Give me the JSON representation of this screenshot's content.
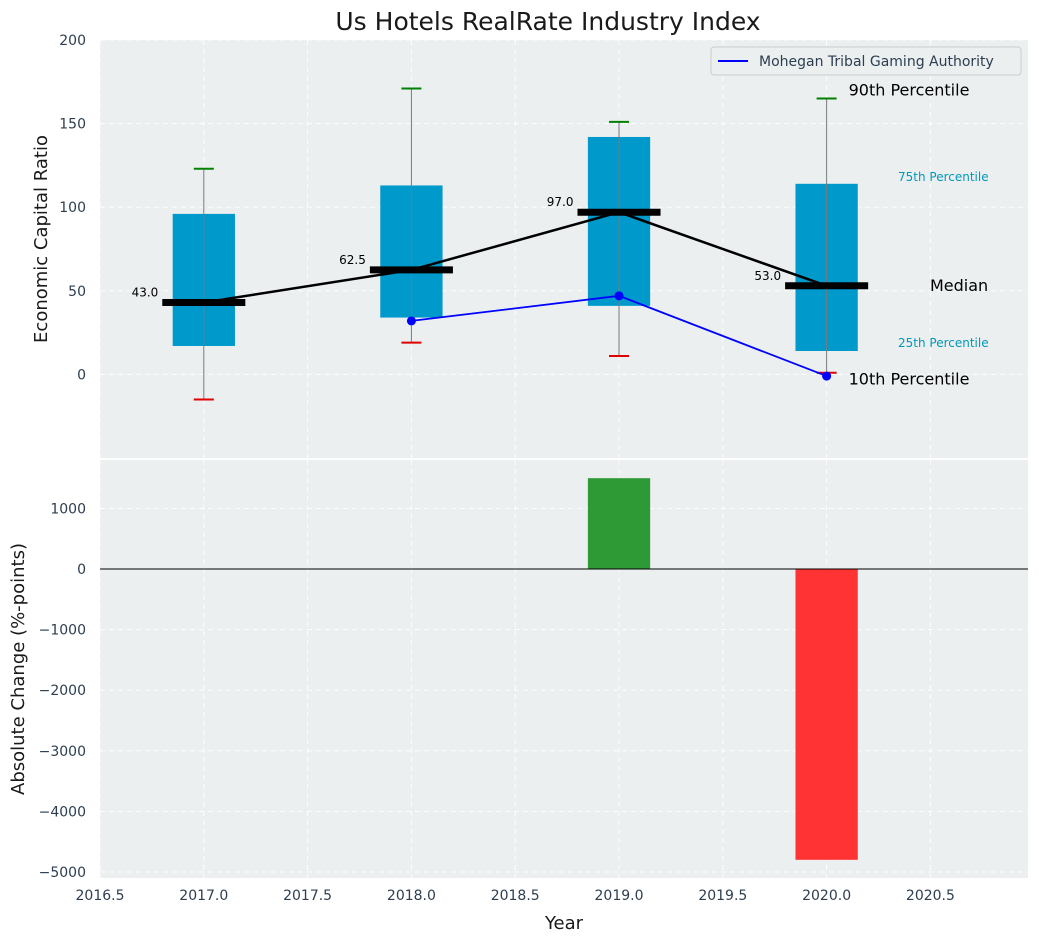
{
  "chart_data": [
    {
      "type": "box",
      "title": "Us Hotels RealRate Industry Index",
      "ylabel": "Economic Capital Ratio",
      "ylim": [
        -50,
        200
      ],
      "yticks": [
        0,
        50,
        100,
        150,
        200
      ],
      "grid": true,
      "legend_position": "top-right",
      "categories": [
        2017,
        2018,
        2019,
        2020
      ],
      "p10": [
        -15,
        19,
        11,
        1
      ],
      "p25": [
        17,
        34,
        41,
        14
      ],
      "median": [
        43.0,
        62.5,
        97.0,
        53.0
      ],
      "median_labels": [
        "43.0",
        "62.5",
        "97.0",
        "53.0"
      ],
      "p75": [
        96,
        113,
        142,
        114
      ],
      "p90": [
        123,
        171,
        151,
        165
      ],
      "series": [
        {
          "name": "Mohegan Tribal Gaming Authority",
          "x": [
            2018,
            2019,
            2020
          ],
          "values": [
            32,
            47,
            -1
          ],
          "color": "#0000ff"
        }
      ],
      "annotations": {
        "p90": "90th Percentile",
        "p75": "75th Percentile",
        "median": "Median",
        "p25": "25th Percentile",
        "p10": "10th Percentile"
      },
      "colors": {
        "box": "#0099cc",
        "p90_cap": "#008000",
        "p10_cap": "#e00000",
        "median": "#000000",
        "annotation_quartile": "#0099bb"
      }
    },
    {
      "type": "bar",
      "xlabel": "Year",
      "ylabel": "Absolute Change (%-points)",
      "xlim": [
        2016.5,
        2020.97
      ],
      "xticks": [
        "2016.5",
        "2017.0",
        "2017.5",
        "2018.0",
        "2018.5",
        "2019.0",
        "2019.5",
        "2020.0",
        "2020.5"
      ],
      "ylim": [
        -5100,
        1800
      ],
      "yticks": [
        -5000,
        -4000,
        -3000,
        -2000,
        -1000,
        0,
        1000
      ],
      "x": [
        2019,
        2020
      ],
      "values": [
        1500,
        -4800
      ],
      "colors": {
        "positive": "#2e9a36",
        "negative": "#ff3333"
      }
    }
  ]
}
